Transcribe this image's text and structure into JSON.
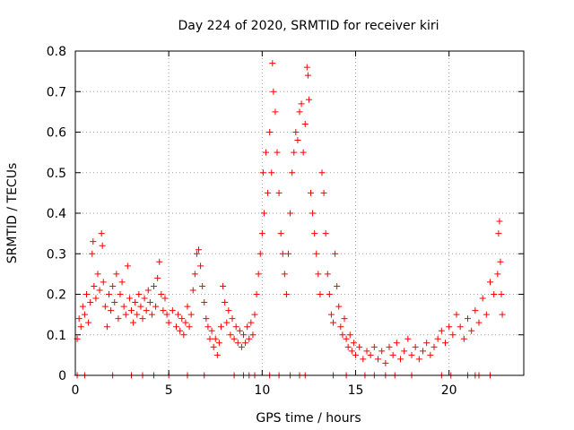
{
  "chart_data": {
    "type": "scatter",
    "title": "Day 224 of 2020, SRMTID for receiver kiri",
    "xlabel": "GPS time / hours",
    "ylabel": "SRMTID / TECUs",
    "xlim": [
      0,
      24
    ],
    "ylim": [
      0,
      0.8
    ],
    "xticks": [
      0,
      5,
      10,
      15,
      20
    ],
    "yticks": [
      0,
      0.1,
      0.2,
      0.3,
      0.4,
      0.5,
      0.6,
      0.7,
      0.8
    ],
    "xtick_labels": [
      "0",
      "5",
      "10",
      "15",
      "20"
    ],
    "ytick_labels": [
      "0",
      "0.1",
      "0.2",
      "0.3",
      "0.4",
      "0.5",
      "0.6",
      "0.7",
      "0.8"
    ],
    "grid": true,
    "marker": "+",
    "color": "#ff0000",
    "series": [
      {
        "name": "SRMTID",
        "points": [
          [
            0.1,
            0.09
          ],
          [
            0.2,
            0.14
          ],
          [
            0.3,
            0.12
          ],
          [
            0.4,
            0.17
          ],
          [
            0.5,
            0.15
          ],
          [
            0.6,
            0.2
          ],
          [
            0.7,
            0.13
          ],
          [
            0.8,
            0.18
          ],
          [
            0.9,
            0.3
          ],
          [
            0.95,
            0.33
          ],
          [
            1.0,
            0.22
          ],
          [
            1.1,
            0.19
          ],
          [
            1.2,
            0.25
          ],
          [
            1.3,
            0.21
          ],
          [
            1.4,
            0.35
          ],
          [
            1.45,
            0.32
          ],
          [
            1.5,
            0.23
          ],
          [
            1.6,
            0.17
          ],
          [
            1.7,
            0.12
          ],
          [
            1.8,
            0.2
          ],
          [
            1.9,
            0.16
          ],
          [
            2.0,
            0.22
          ],
          [
            2.1,
            0.18
          ],
          [
            2.2,
            0.25
          ],
          [
            2.3,
            0.14
          ],
          [
            2.4,
            0.2
          ],
          [
            2.5,
            0.23
          ],
          [
            2.6,
            0.17
          ],
          [
            2.7,
            0.15
          ],
          [
            2.8,
            0.27
          ],
          [
            2.9,
            0.19
          ],
          [
            3.0,
            0.16
          ],
          [
            3.1,
            0.13
          ],
          [
            3.2,
            0.18
          ],
          [
            3.3,
            0.15
          ],
          [
            3.4,
            0.2
          ],
          [
            3.5,
            0.17
          ],
          [
            3.6,
            0.14
          ],
          [
            3.7,
            0.19
          ],
          [
            3.8,
            0.16
          ],
          [
            3.9,
            0.21
          ],
          [
            4.0,
            0.18
          ],
          [
            4.1,
            0.15
          ],
          [
            4.2,
            0.22
          ],
          [
            4.3,
            0.17
          ],
          [
            4.4,
            0.24
          ],
          [
            4.5,
            0.28
          ],
          [
            4.6,
            0.2
          ],
          [
            4.7,
            0.16
          ],
          [
            4.8,
            0.19
          ],
          [
            4.9,
            0.15
          ],
          [
            5.0,
            0.13
          ],
          [
            5.2,
            0.16
          ],
          [
            5.4,
            0.12
          ],
          [
            5.5,
            0.15
          ],
          [
            5.6,
            0.11
          ],
          [
            5.7,
            0.14
          ],
          [
            5.8,
            0.1
          ],
          [
            5.9,
            0.13
          ],
          [
            6.0,
            0.17
          ],
          [
            6.1,
            0.12
          ],
          [
            6.2,
            0.15
          ],
          [
            6.3,
            0.21
          ],
          [
            6.4,
            0.25
          ],
          [
            6.5,
            0.3
          ],
          [
            6.6,
            0.31
          ],
          [
            6.7,
            0.27
          ],
          [
            6.8,
            0.22
          ],
          [
            6.9,
            0.18
          ],
          [
            7.0,
            0.14
          ],
          [
            7.1,
            0.12
          ],
          [
            7.2,
            0.09
          ],
          [
            7.3,
            0.11
          ],
          [
            7.4,
            0.07
          ],
          [
            7.5,
            0.09
          ],
          [
            7.6,
            0.05
          ],
          [
            7.7,
            0.08
          ],
          [
            7.8,
            0.12
          ],
          [
            7.9,
            0.22
          ],
          [
            8.0,
            0.18
          ],
          [
            8.1,
            0.13
          ],
          [
            8.2,
            0.16
          ],
          [
            8.3,
            0.1
          ],
          [
            8.4,
            0.14
          ],
          [
            8.5,
            0.09
          ],
          [
            8.6,
            0.12
          ],
          [
            8.7,
            0.08
          ],
          [
            8.8,
            0.11
          ],
          [
            8.9,
            0.07
          ],
          [
            9.0,
            0.1
          ],
          [
            9.1,
            0.08
          ],
          [
            9.2,
            0.12
          ],
          [
            9.3,
            0.09
          ],
          [
            9.4,
            0.13
          ],
          [
            9.5,
            0.1
          ],
          [
            9.6,
            0.15
          ],
          [
            9.7,
            0.2
          ],
          [
            9.8,
            0.25
          ],
          [
            9.9,
            0.3
          ],
          [
            10.0,
            0.35
          ],
          [
            10.05,
            0.5
          ],
          [
            10.1,
            0.4
          ],
          [
            10.2,
            0.55
          ],
          [
            10.3,
            0.45
          ],
          [
            10.4,
            0.6
          ],
          [
            10.5,
            0.5
          ],
          [
            10.55,
            0.77
          ],
          [
            10.6,
            0.7
          ],
          [
            10.7,
            0.65
          ],
          [
            10.8,
            0.55
          ],
          [
            10.9,
            0.45
          ],
          [
            11.0,
            0.35
          ],
          [
            11.1,
            0.3
          ],
          [
            11.2,
            0.25
          ],
          [
            11.3,
            0.2
          ],
          [
            11.4,
            0.3
          ],
          [
            11.5,
            0.4
          ],
          [
            11.6,
            0.5
          ],
          [
            11.7,
            0.55
          ],
          [
            11.8,
            0.6
          ],
          [
            11.9,
            0.58
          ],
          [
            12.0,
            0.65
          ],
          [
            12.1,
            0.67
          ],
          [
            12.2,
            0.55
          ],
          [
            12.3,
            0.62
          ],
          [
            12.4,
            0.76
          ],
          [
            12.45,
            0.74
          ],
          [
            12.5,
            0.68
          ],
          [
            12.6,
            0.45
          ],
          [
            12.7,
            0.4
          ],
          [
            12.8,
            0.35
          ],
          [
            12.9,
            0.3
          ],
          [
            13.0,
            0.25
          ],
          [
            13.1,
            0.2
          ],
          [
            13.2,
            0.5
          ],
          [
            13.3,
            0.45
          ],
          [
            13.4,
            0.35
          ],
          [
            13.5,
            0.25
          ],
          [
            13.6,
            0.2
          ],
          [
            13.7,
            0.15
          ],
          [
            13.8,
            0.13
          ],
          [
            13.9,
            0.3
          ],
          [
            14.0,
            0.22
          ],
          [
            14.1,
            0.17
          ],
          [
            14.2,
            0.12
          ],
          [
            14.3,
            0.1
          ],
          [
            14.4,
            0.14
          ],
          [
            14.5,
            0.09
          ],
          [
            14.6,
            0.07
          ],
          [
            14.7,
            0.1
          ],
          [
            14.8,
            0.06
          ],
          [
            14.9,
            0.08
          ],
          [
            15.0,
            0.05
          ],
          [
            15.2,
            0.07
          ],
          [
            15.4,
            0.04
          ],
          [
            15.6,
            0.06
          ],
          [
            15.8,
            0.05
          ],
          [
            16.0,
            0.07
          ],
          [
            16.2,
            0.04
          ],
          [
            16.4,
            0.06
          ],
          [
            16.6,
            0.03
          ],
          [
            16.8,
            0.07
          ],
          [
            17.0,
            0.05
          ],
          [
            17.2,
            0.08
          ],
          [
            17.4,
            0.04
          ],
          [
            17.6,
            0.06
          ],
          [
            17.8,
            0.09
          ],
          [
            18.0,
            0.05
          ],
          [
            18.2,
            0.07
          ],
          [
            18.4,
            0.04
          ],
          [
            18.6,
            0.06
          ],
          [
            18.8,
            0.08
          ],
          [
            19.0,
            0.05
          ],
          [
            19.2,
            0.07
          ],
          [
            19.4,
            0.09
          ],
          [
            19.6,
            0.11
          ],
          [
            19.8,
            0.08
          ],
          [
            20.0,
            0.12
          ],
          [
            20.2,
            0.1
          ],
          [
            20.4,
            0.15
          ],
          [
            20.6,
            0.12
          ],
          [
            20.8,
            0.09
          ],
          [
            21.0,
            0.14
          ],
          [
            21.2,
            0.11
          ],
          [
            21.4,
            0.16
          ],
          [
            21.6,
            0.13
          ],
          [
            21.8,
            0.19
          ],
          [
            22.0,
            0.15
          ],
          [
            22.2,
            0.23
          ],
          [
            22.4,
            0.2
          ],
          [
            22.6,
            0.25
          ],
          [
            22.65,
            0.35
          ],
          [
            22.7,
            0.38
          ],
          [
            22.75,
            0.28
          ],
          [
            22.8,
            0.2
          ],
          [
            22.85,
            0.15
          ]
        ]
      },
      {
        "name": "zero-value markers",
        "points": [
          [
            0.1,
            0
          ],
          [
            0.5,
            0
          ],
          [
            2.0,
            0
          ],
          [
            3.0,
            0
          ],
          [
            3.6,
            0
          ],
          [
            4.2,
            0
          ],
          [
            5.0,
            0
          ],
          [
            6.0,
            0
          ],
          [
            6.9,
            0
          ],
          [
            8.5,
            0
          ],
          [
            9.0,
            0
          ],
          [
            9.3,
            0
          ],
          [
            9.6,
            0
          ],
          [
            10.4,
            0
          ],
          [
            10.9,
            0
          ],
          [
            11.5,
            0
          ],
          [
            12.0,
            0
          ],
          [
            12.3,
            0
          ],
          [
            13.8,
            0
          ],
          [
            14.5,
            0
          ],
          [
            15.5,
            0
          ],
          [
            16.0,
            0
          ],
          [
            16.6,
            0
          ],
          [
            17.1,
            0
          ],
          [
            18.0,
            0
          ],
          [
            19.6,
            0
          ],
          [
            20.1,
            0
          ],
          [
            21.0,
            0
          ],
          [
            21.4,
            0
          ],
          [
            21.6,
            0
          ],
          [
            22.2,
            0
          ]
        ]
      }
    ]
  }
}
